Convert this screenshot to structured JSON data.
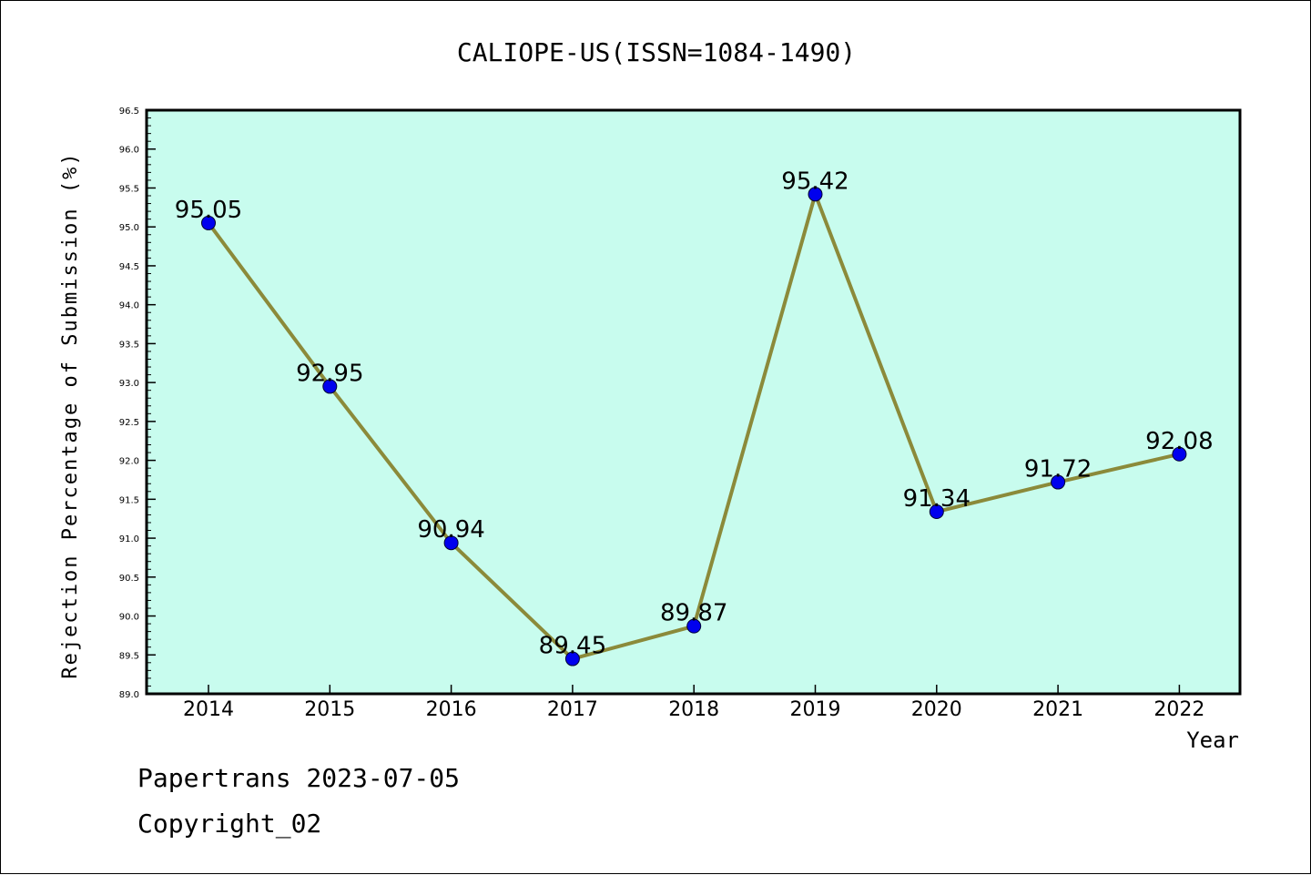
{
  "footer": {
    "line1": "Papertrans 2023-07-05",
    "line2": "Copyright_02"
  },
  "colors": {
    "plot_background": "#c8fcee",
    "line": "#8b8a3a",
    "marker": "#0000ee",
    "axis": "#000000"
  },
  "chart_data": {
    "type": "line",
    "title": "CALIOPE-US(ISSN=1084-1490)",
    "xlabel": "Year",
    "ylabel": "Rejection Percentage of Submission (%)",
    "categories": [
      "2014",
      "2015",
      "2016",
      "2017",
      "2018",
      "2019",
      "2020",
      "2021",
      "2022"
    ],
    "series": [
      {
        "values": [
          95.05,
          92.95,
          90.94,
          89.45,
          89.87,
          95.42,
          91.34,
          91.72,
          92.08
        ]
      }
    ],
    "data_labels": [
      "95.05",
      "92.95",
      "90.94",
      "89.45",
      "89.87",
      "95.42",
      "91.34",
      "91.72",
      "92.08"
    ],
    "ylim": [
      89.0,
      96.5
    ],
    "yticks": [
      "89.0",
      "89.5",
      "90.0",
      "90.5",
      "91.0",
      "91.5",
      "92.0",
      "92.5",
      "93.0",
      "93.5",
      "94.0",
      "94.5",
      "95.0",
      "95.5",
      "96.0",
      "96.5"
    ],
    "grid": false,
    "legend": "none"
  }
}
